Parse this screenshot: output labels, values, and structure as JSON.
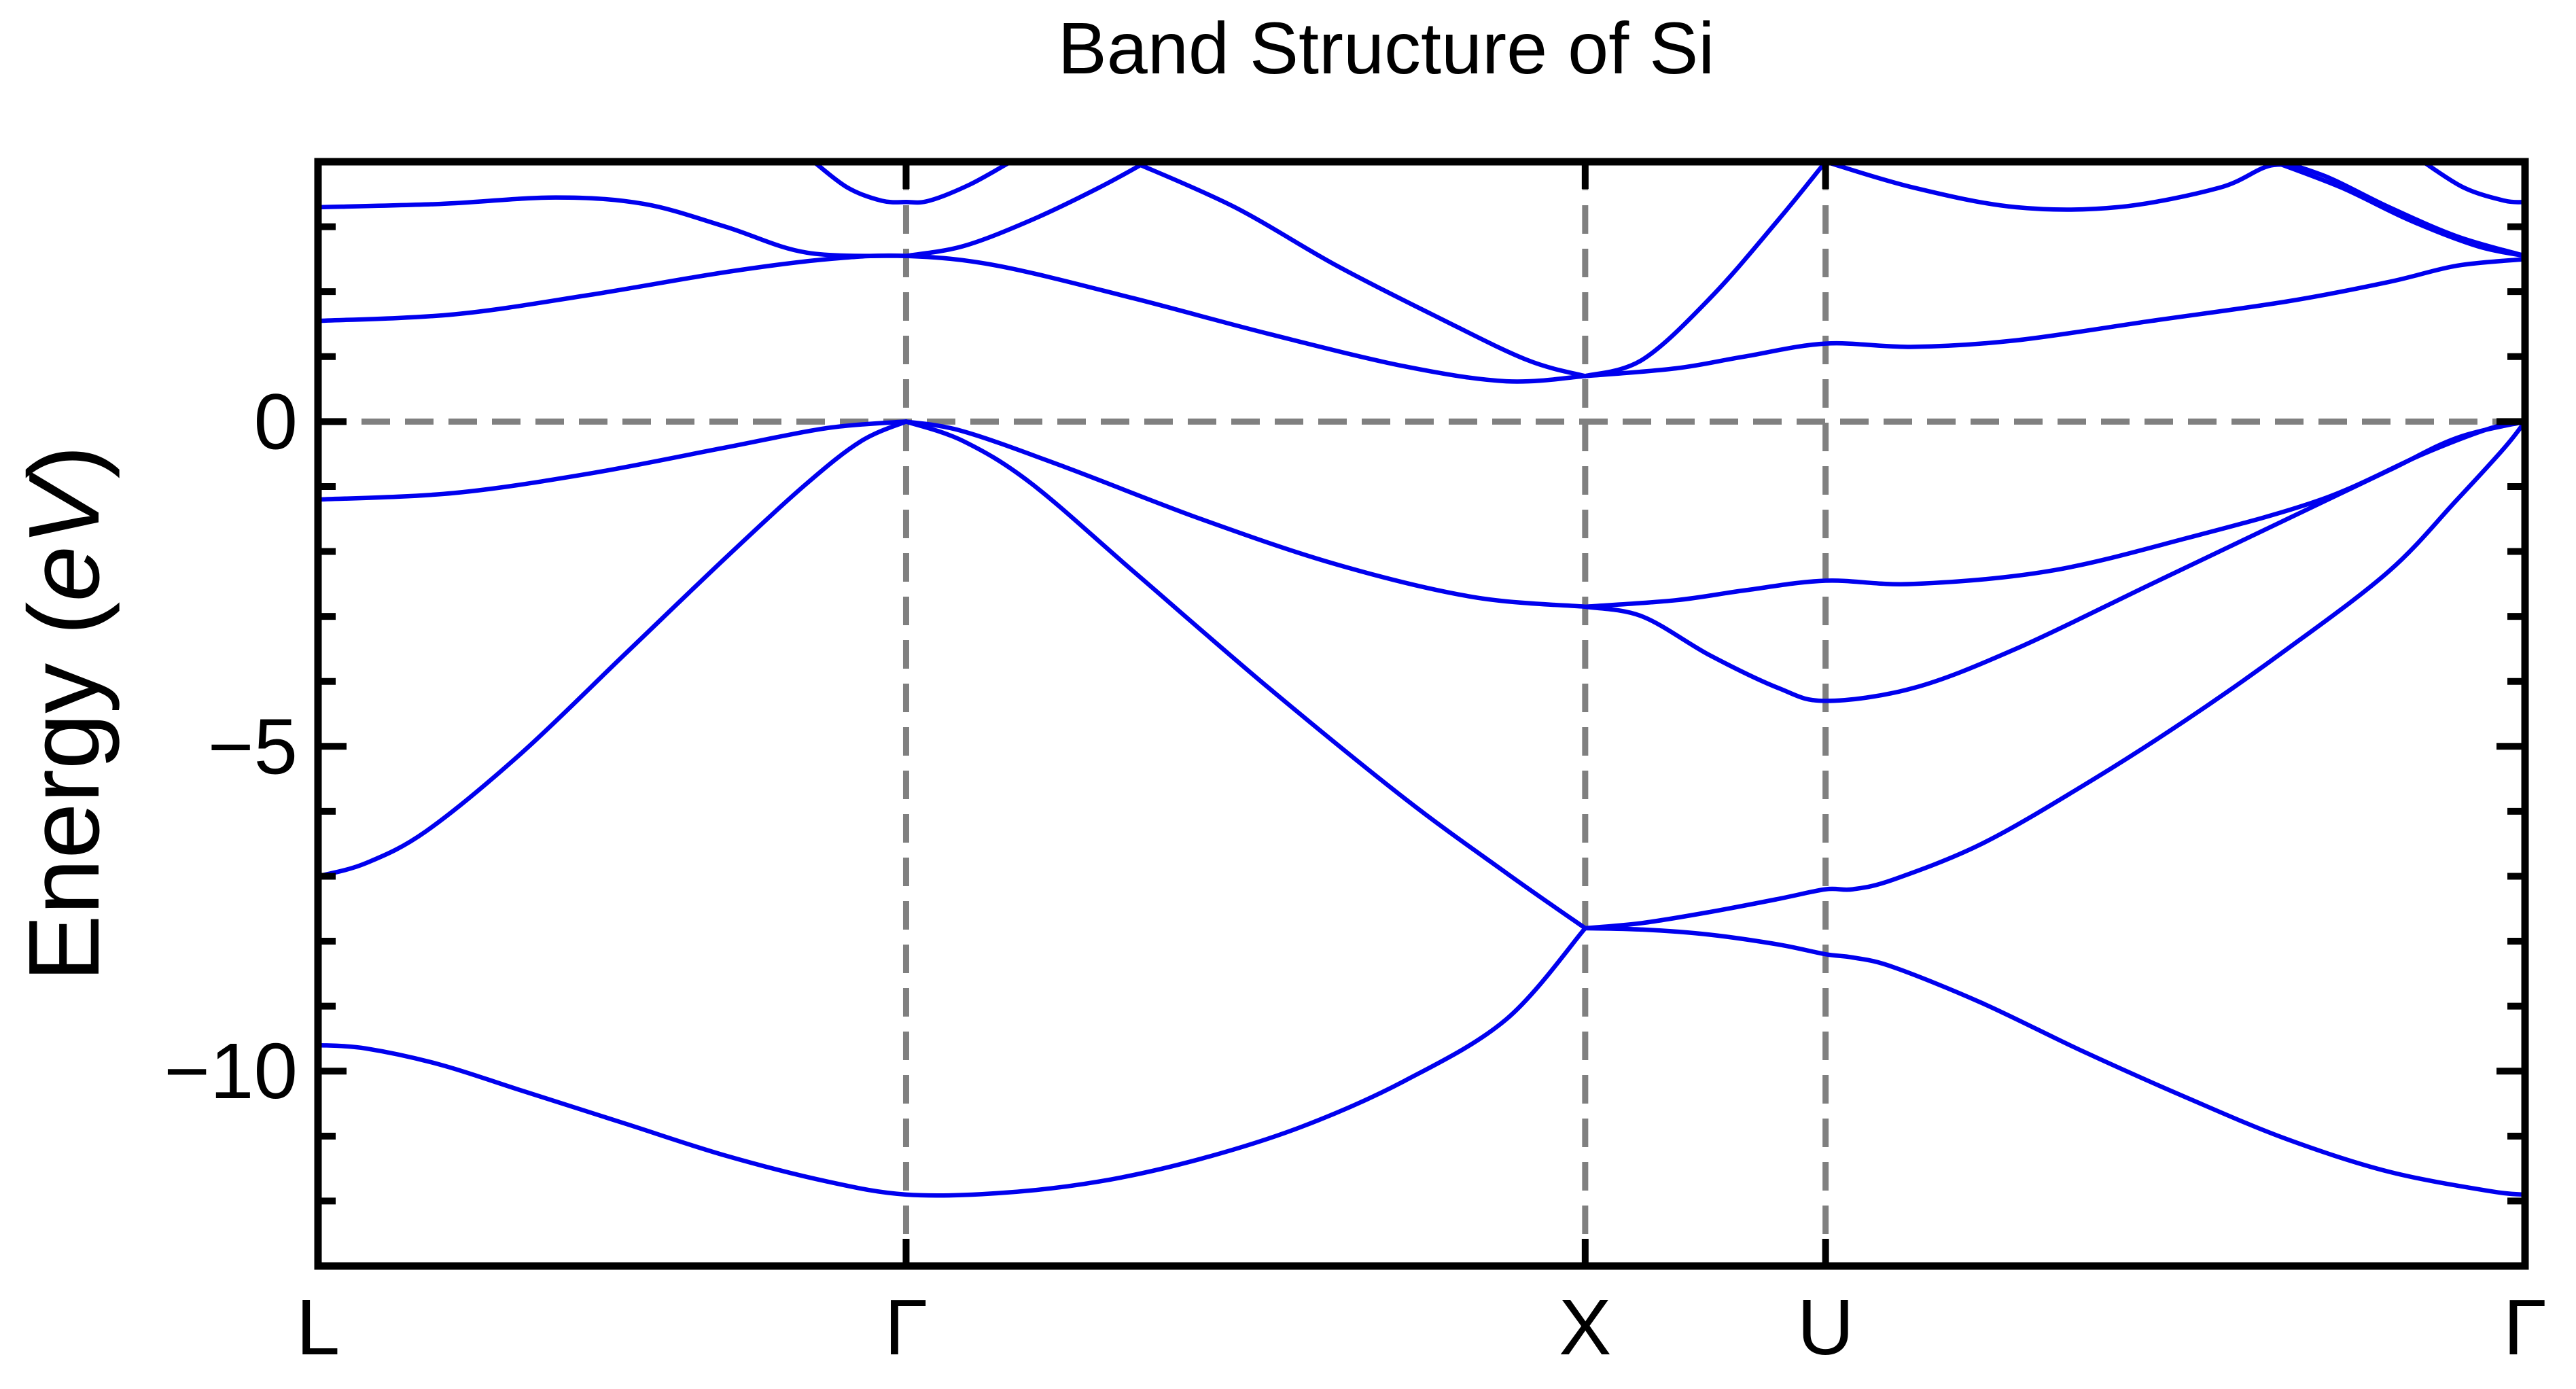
{
  "chart_data": {
    "type": "line",
    "title": "Band Structure of Si",
    "ylabel_main": "Energy (",
    "ylabel_unit": "eV",
    "ylabel_close": ")",
    "xlabel": "",
    "ylim": [
      -13,
      4
    ],
    "yticks": [
      {
        "value": 0,
        "label": "0"
      },
      {
        "value": -5,
        "label": "−5"
      },
      {
        "value": -10,
        "label": "−10"
      }
    ],
    "yminor_step": 1,
    "kpoints": [
      {
        "label": "L",
        "x": 0.0
      },
      {
        "label": "Γ",
        "x": 0.866
      },
      {
        "label": "X",
        "x": 1.866
      },
      {
        "label": "U",
        "x": 2.22
      },
      {
        "label": "Γ",
        "x": 3.25
      }
    ],
    "xlim": [
      0,
      3.25
    ],
    "fermi_level": 0,
    "colors": {
      "band": "#0000ee",
      "guide": "#808080",
      "frame": "#000000"
    },
    "series": [
      {
        "values": [
          [
            0.0,
            -9.6
          ],
          [
            0.07,
            -9.65
          ],
          [
            0.18,
            -9.9
          ],
          [
            0.3,
            -10.3
          ],
          [
            0.45,
            -10.8
          ],
          [
            0.6,
            -11.3
          ],
          [
            0.75,
            -11.7
          ],
          [
            0.866,
            -11.9
          ],
          [
            1.0,
            -11.88
          ],
          [
            1.15,
            -11.7
          ],
          [
            1.3,
            -11.35
          ],
          [
            1.45,
            -10.85
          ],
          [
            1.6,
            -10.15
          ],
          [
            1.75,
            -9.2
          ],
          [
            1.866,
            -7.8
          ]
        ]
      },
      {
        "values": [
          [
            1.866,
            -7.8
          ],
          [
            1.95,
            -7.82
          ],
          [
            2.05,
            -7.9
          ],
          [
            2.15,
            -8.05
          ],
          [
            2.22,
            -8.2
          ],
          [
            2.26,
            -8.25
          ],
          [
            2.32,
            -8.4
          ],
          [
            2.45,
            -8.95
          ],
          [
            2.6,
            -9.7
          ],
          [
            2.75,
            -10.4
          ],
          [
            2.9,
            -11.05
          ],
          [
            3.05,
            -11.55
          ],
          [
            3.2,
            -11.85
          ],
          [
            3.25,
            -11.9
          ]
        ]
      },
      {
        "values": [
          [
            0.0,
            -7.0
          ],
          [
            0.07,
            -6.8
          ],
          [
            0.16,
            -6.3
          ],
          [
            0.3,
            -5.1
          ],
          [
            0.45,
            -3.6
          ],
          [
            0.6,
            -2.1
          ],
          [
            0.72,
            -0.95
          ],
          [
            0.8,
            -0.3
          ],
          [
            0.866,
            0.0
          ]
        ]
      },
      {
        "values": [
          [
            0.866,
            0.0
          ],
          [
            0.95,
            -0.3
          ],
          [
            1.05,
            -0.95
          ],
          [
            1.2,
            -2.3
          ],
          [
            1.4,
            -4.1
          ],
          [
            1.6,
            -5.8
          ],
          [
            1.75,
            -6.95
          ],
          [
            1.866,
            -7.8
          ]
        ]
      },
      {
        "values": [
          [
            1.866,
            -7.8
          ],
          [
            1.95,
            -7.72
          ],
          [
            2.05,
            -7.55
          ],
          [
            2.15,
            -7.35
          ],
          [
            2.22,
            -7.2
          ],
          [
            2.26,
            -7.2
          ],
          [
            2.32,
            -7.05
          ],
          [
            2.45,
            -6.5
          ],
          [
            2.6,
            -5.6
          ],
          [
            2.75,
            -4.6
          ],
          [
            2.9,
            -3.5
          ],
          [
            3.05,
            -2.3
          ],
          [
            3.15,
            -1.2
          ],
          [
            3.22,
            -0.4
          ],
          [
            3.25,
            0.0
          ]
        ]
      },
      {
        "values": [
          [
            0.0,
            -1.2
          ],
          [
            0.2,
            -1.1
          ],
          [
            0.4,
            -0.8
          ],
          [
            0.6,
            -0.4
          ],
          [
            0.75,
            -0.1
          ],
          [
            0.866,
            0.0
          ]
        ]
      },
      {
        "values": [
          [
            0.866,
            0.0
          ],
          [
            0.95,
            -0.15
          ],
          [
            1.1,
            -0.7
          ],
          [
            1.3,
            -1.5
          ],
          [
            1.5,
            -2.2
          ],
          [
            1.7,
            -2.7
          ],
          [
            1.866,
            -2.85
          ]
        ]
      },
      {
        "values": [
          [
            1.866,
            -2.85
          ],
          [
            1.95,
            -3.0
          ],
          [
            2.05,
            -3.6
          ],
          [
            2.15,
            -4.1
          ],
          [
            2.22,
            -4.3
          ],
          [
            2.35,
            -4.1
          ],
          [
            2.5,
            -3.5
          ],
          [
            2.7,
            -2.5
          ],
          [
            2.9,
            -1.5
          ],
          [
            3.05,
            -0.75
          ],
          [
            3.15,
            -0.25
          ],
          [
            3.25,
            0.0
          ]
        ]
      },
      {
        "values": [
          [
            1.866,
            -2.85
          ],
          [
            2.0,
            -2.75
          ],
          [
            2.1,
            -2.6
          ],
          [
            2.22,
            -2.45
          ],
          [
            2.35,
            -2.5
          ],
          [
            2.55,
            -2.3
          ],
          [
            2.75,
            -1.8
          ],
          [
            2.95,
            -1.2
          ],
          [
            3.1,
            -0.5
          ],
          [
            3.2,
            -0.1
          ],
          [
            3.25,
            0.0
          ]
        ]
      },
      {
        "values": [
          [
            0.0,
            1.55
          ],
          [
            0.2,
            1.65
          ],
          [
            0.4,
            1.95
          ],
          [
            0.6,
            2.3
          ],
          [
            0.75,
            2.5
          ],
          [
            0.866,
            2.55
          ],
          [
            1.0,
            2.4
          ],
          [
            1.2,
            1.9
          ],
          [
            1.4,
            1.35
          ],
          [
            1.6,
            0.85
          ],
          [
            1.75,
            0.62
          ],
          [
            1.866,
            0.7
          ]
        ]
      },
      {
        "values": [
          [
            1.866,
            0.7
          ],
          [
            2.0,
            0.82
          ],
          [
            2.1,
            1.0
          ],
          [
            2.22,
            1.2
          ],
          [
            2.35,
            1.15
          ],
          [
            2.5,
            1.25
          ],
          [
            2.7,
            1.55
          ],
          [
            2.9,
            1.85
          ],
          [
            3.05,
            2.15
          ],
          [
            3.15,
            2.4
          ],
          [
            3.25,
            2.5
          ]
        ]
      },
      {
        "values": [
          [
            0.0,
            3.3
          ],
          [
            0.18,
            3.35
          ],
          [
            0.35,
            3.45
          ],
          [
            0.48,
            3.35
          ],
          [
            0.6,
            3.0
          ],
          [
            0.72,
            2.6
          ],
          [
            0.866,
            2.55
          ]
        ]
      },
      {
        "values": [
          [
            0.866,
            2.55
          ],
          [
            0.95,
            2.7
          ],
          [
            1.05,
            3.1
          ],
          [
            1.15,
            3.6
          ],
          [
            1.22,
            4.0
          ]
        ]
      },
      {
        "values": [
          [
            0.73,
            4.0
          ],
          [
            0.78,
            3.6
          ],
          [
            0.83,
            3.4
          ],
          [
            0.866,
            3.38
          ],
          [
            0.9,
            3.4
          ],
          [
            0.96,
            3.65
          ],
          [
            1.02,
            4.0
          ]
        ]
      },
      {
        "values": [
          [
            1.2,
            4.0
          ],
          [
            1.35,
            3.3
          ],
          [
            1.5,
            2.4
          ],
          [
            1.65,
            1.6
          ],
          [
            1.78,
            0.95
          ],
          [
            1.866,
            0.7
          ]
        ]
      },
      {
        "values": [
          [
            1.866,
            0.7
          ],
          [
            1.95,
            0.95
          ],
          [
            2.05,
            1.9
          ],
          [
            2.15,
            3.1
          ],
          [
            2.22,
            4.0
          ]
        ]
      },
      {
        "values": [
          [
            2.22,
            4.0
          ],
          [
            2.35,
            3.6
          ],
          [
            2.5,
            3.3
          ],
          [
            2.65,
            3.3
          ],
          [
            2.8,
            3.6
          ],
          [
            2.88,
            3.95
          ],
          [
            2.95,
            3.8
          ],
          [
            3.05,
            3.3
          ],
          [
            3.15,
            2.85
          ],
          [
            3.25,
            2.55
          ]
        ]
      },
      {
        "values": [
          [
            2.88,
            4.0
          ],
          [
            2.98,
            3.6
          ],
          [
            3.08,
            3.1
          ],
          [
            3.18,
            2.7
          ],
          [
            3.25,
            2.55
          ]
        ]
      },
      {
        "values": [
          [
            3.1,
            4.0
          ],
          [
            3.16,
            3.6
          ],
          [
            3.22,
            3.4
          ],
          [
            3.25,
            3.38
          ]
        ]
      }
    ]
  }
}
